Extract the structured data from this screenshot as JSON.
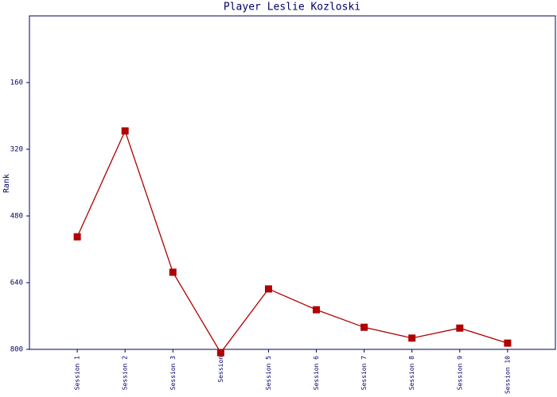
{
  "chart_data": {
    "type": "line",
    "title": "Player Leslie Kozloski",
    "y_label": "Rank",
    "categories": [
      "Session 1",
      "Session 2",
      "Session 3",
      "Session",
      "Session 5",
      "Session 6",
      "Session 7",
      "Session 8",
      "Session 9",
      "Session 10"
    ],
    "series": [
      {
        "name": "Rank",
        "color": "#b00000",
        "values": [
          530,
          276,
          615,
          808,
          655,
          705,
          747,
          773,
          749,
          785
        ]
      }
    ],
    "ylim": [
      0,
      800
    ],
    "y_inverted": true,
    "yticks": [
      160,
      320,
      480,
      640,
      800
    ]
  }
}
